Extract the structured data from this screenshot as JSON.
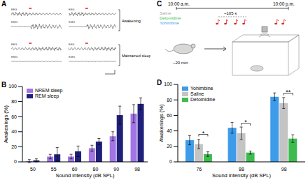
{
  "panels": [
    "A",
    "B",
    "C",
    "D"
  ],
  "panel_a": {
    "traces": [
      "EEG",
      "EMG"
    ],
    "rows": [
      "Awakening",
      "Maintained sleep"
    ]
  },
  "panel_c": {
    "start": "10:00 a.m.",
    "end": "10:00 p.m.",
    "treatments": [
      {
        "name": "Saline",
        "color": "#a8a8a8"
      },
      {
        "name": "Detomidine",
        "color": "#3dbb4f"
      },
      {
        "name": "Yohimbine",
        "color": "#3d9be9"
      }
    ],
    "interval": "~105 s",
    "habituation": "~20 min"
  },
  "chart_data": [
    {
      "type": "bar",
      "categories": [
        "50",
        "55",
        "60",
        "80",
        "90",
        "98"
      ],
      "x_label": "Sound intensity (dB SPL)",
      "y_label": "Awakenings (%)",
      "ylim": [
        0,
        100
      ],
      "yticks": [
        0,
        20,
        40,
        60,
        80,
        100
      ],
      "legend": "upper left",
      "series": [
        {
          "name": "NREM sleep",
          "color": "#a274e6",
          "values": [
            1,
            7,
            7,
            18,
            34,
            64
          ],
          "errors": [
            2,
            3,
            3,
            4,
            6,
            12
          ]
        },
        {
          "name": "REM sleep",
          "color": "#20207a",
          "values": [
            2,
            10,
            14,
            27,
            62,
            77
          ],
          "errors": [
            2,
            9,
            7,
            4,
            12,
            8
          ]
        }
      ]
    },
    {
      "type": "bar",
      "categories": [
        "76",
        "88",
        "98"
      ],
      "x_label": "Sound intensity (dB SPL)",
      "y_label": "Awakenings (%)",
      "ylim": [
        0,
        100
      ],
      "yticks": [
        0,
        20,
        40,
        60,
        80,
        100
      ],
      "legend": "upper left",
      "series": [
        {
          "name": "Yohimbine",
          "color": "#3d9be9",
          "values": [
            28,
            44,
            84
          ],
          "errors": [
            6,
            7,
            5
          ]
        },
        {
          "name": "Saline",
          "color": "#c4c4c4",
          "values": [
            23,
            37,
            76
          ],
          "errors": [
            6,
            8,
            7
          ]
        },
        {
          "name": "Detomidine",
          "color": "#3dbb4f",
          "values": [
            10,
            12,
            30
          ],
          "errors": [
            3,
            2,
            5
          ]
        }
      ],
      "annotations": [
        {
          "category": "76",
          "text": "*",
          "between": [
            "Saline",
            "Detomidine"
          ]
        },
        {
          "category": "88",
          "text": "*",
          "between": [
            "Saline",
            "Detomidine"
          ]
        },
        {
          "category": "98",
          "text": "**",
          "between": [
            "Saline",
            "Detomidine"
          ]
        }
      ]
    }
  ]
}
